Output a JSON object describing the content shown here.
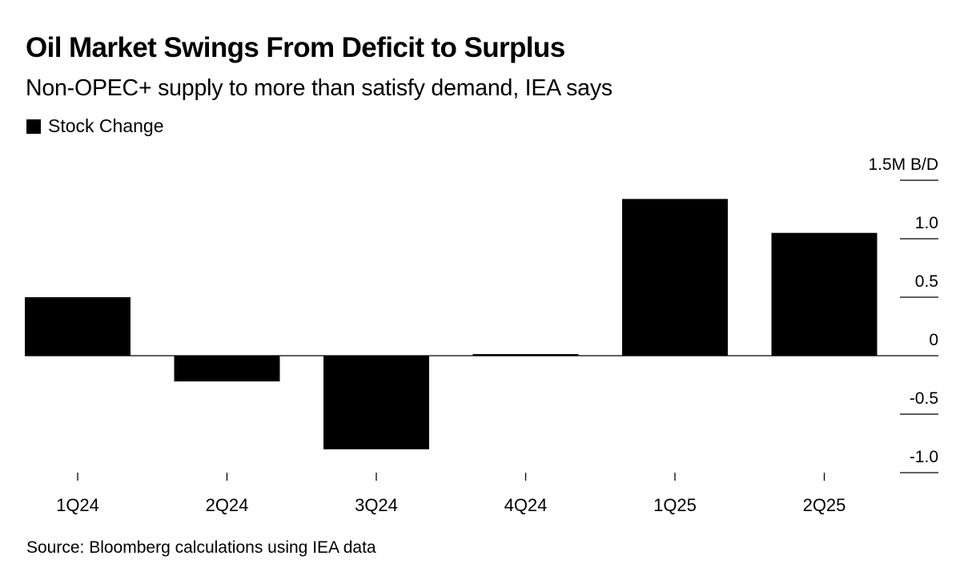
{
  "header": {
    "title": "Oil Market Swings From Deficit to Surplus",
    "subtitle": "Non-OPEC+ supply to more than satisfy demand, IEA says"
  },
  "legend": {
    "items": [
      {
        "label": "Stock Change",
        "color": "#000000"
      }
    ]
  },
  "footer": {
    "source": "Source: Bloomberg calculations using IEA data"
  },
  "chart_data": {
    "type": "bar",
    "title": "Oil Market Swings From Deficit to Surplus",
    "subtitle": "Non-OPEC+ supply to more than satisfy demand, IEA says",
    "categories": [
      "1Q24",
      "2Q24",
      "3Q24",
      "4Q24",
      "1Q25",
      "2Q25"
    ],
    "series": [
      {
        "name": "Stock Change",
        "color": "#000000",
        "values": [
          0.5,
          -0.22,
          -0.8,
          0.01,
          1.34,
          1.05
        ]
      }
    ],
    "xlabel": "",
    "ylabel": "M B/D",
    "ylim": [
      -1.0,
      1.5
    ],
    "yticks": [
      1.5,
      1.0,
      0.5,
      0,
      -0.5,
      -1.0
    ],
    "ytick_labels": [
      "1.5M B/D",
      "1.0",
      "0.5",
      "0",
      "-0.5",
      "-1.0"
    ],
    "y_axis_position": "right",
    "grid": false,
    "legend_position": "top-left"
  }
}
